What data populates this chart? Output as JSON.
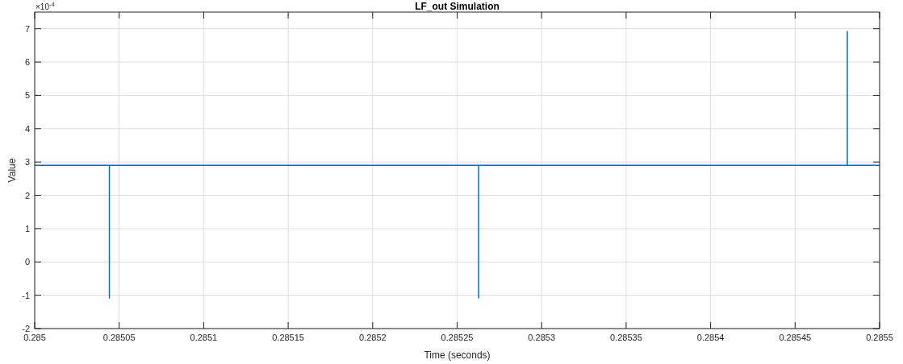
{
  "chart_data": {
    "type": "line",
    "title": "LF_out Simulation",
    "xlabel": "Time (seconds)",
    "ylabel": "Value",
    "annotations": [
      "×10$^{-4}$"
    ],
    "x": [
      0.285,
      0.2850442,
      0.2850442,
      0.2850442,
      0.2852627,
      0.2852627,
      0.2852627,
      0.2854809,
      0.2854809,
      0.2854809,
      0.2855
    ],
    "series": [
      {
        "color": "#0072bd",
        "values": [
          2.9,
          2.9,
          -1.08,
          2.9,
          2.9,
          -1.08,
          2.9,
          2.9,
          6.92,
          2.9,
          2.9
        ]
      }
    ],
    "xlim": [
      0.285,
      0.2855
    ],
    "xticks": [
      0.285,
      0.28505,
      0.2851,
      0.28515,
      0.2852,
      0.28525,
      0.2853,
      0.28535,
      0.2854,
      0.28545,
      0.2855
    ],
    "ylim": [
      -2,
      7.5
    ],
    "yticks": [
      -2,
      -1,
      0,
      1,
      2,
      3,
      4,
      5,
      6,
      7
    ],
    "grid": true,
    "line_style": "solid"
  }
}
